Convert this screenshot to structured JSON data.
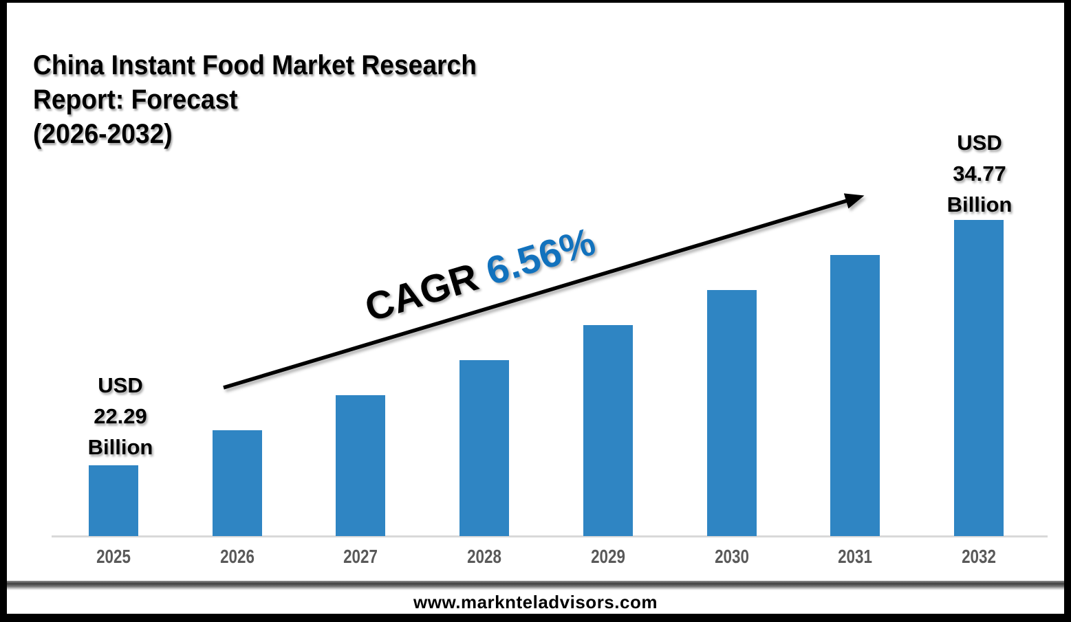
{
  "page": {
    "title_lines": [
      "China Instant Food Market Research",
      "Report: Forecast",
      "(2026-2032)"
    ],
    "footer": {
      "url": "www.marknteladvisors.com"
    }
  },
  "chart_data": {
    "type": "bar",
    "title": "China Instant Food Market Research Report: Forecast (2026-2032)",
    "unit": "USD Billion",
    "categories": [
      "2025",
      "2026",
      "2027",
      "2028",
      "2029",
      "2030",
      "2031",
      "2032"
    ],
    "values": [
      22.29,
      24.07,
      25.86,
      27.64,
      29.42,
      31.2,
      32.99,
      34.77
    ],
    "labeled_values": {
      "2025": "USD 22.29 Billion",
      "2032": "USD 34.77 Billion"
    },
    "ylim": [
      18.7,
      34.77
    ],
    "grid": false,
    "y_axis_visible": false,
    "legend": "none",
    "bar_color": "#2F85C3",
    "axis_line_color": "#D9D9D9",
    "category_label_color": "#595959",
    "annotations": {
      "first_bar": {
        "category": "2025",
        "lines": [
          "USD",
          "22.29",
          "Billion"
        ]
      },
      "last_bar": {
        "category": "2032",
        "lines": [
          "USD",
          "34.77",
          "Billion"
        ]
      },
      "cagr": {
        "label": "CAGR",
        "value": "6.56%",
        "value_color": "#1272BD",
        "arrow_color": "#000000"
      }
    }
  }
}
